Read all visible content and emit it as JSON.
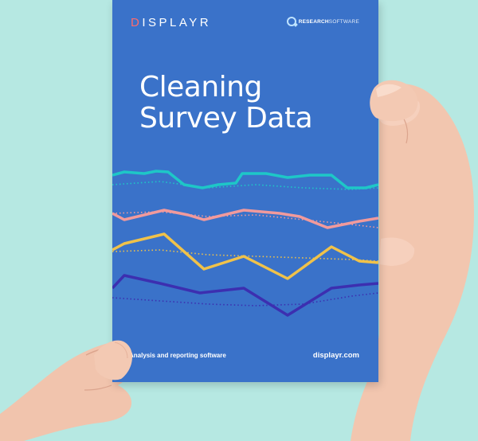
{
  "brochure": {
    "brand": "DISPLAYR",
    "brand_first_letter": "D",
    "brand_rest": "ISPLAYR",
    "partner_logo_strong": "RESEARCH",
    "partner_logo_light": "SOFTWARE",
    "title_line1": "Cleaning",
    "title_line2": "Survey Data",
    "tagline": "Analysis and reporting software",
    "website": "displayr.com"
  },
  "colors": {
    "background": "#b6e8e2",
    "cover": "#3a72c9",
    "line_teal": "#1ec7c7",
    "line_pink": "#f19a9c",
    "line_yellow": "#f0c24a",
    "line_indigo": "#3c2fb0",
    "skin": "#f3c9b3"
  },
  "icons": {
    "partner": "magnifier-q-icon"
  }
}
